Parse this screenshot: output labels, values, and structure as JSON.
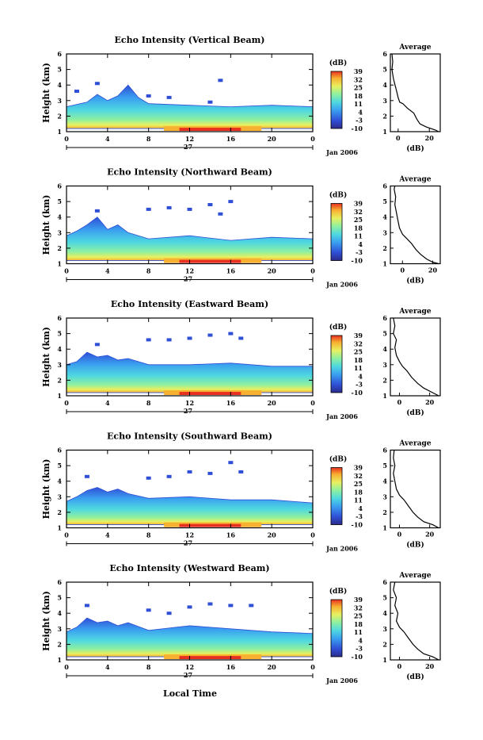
{
  "figure": {
    "date_label": "Jan 2006",
    "day_label": "27",
    "xlabel_bottom": "Local Time",
    "colorbar_unit": "(dB)",
    "colorbar_ticks": [
      "39",
      "32",
      "25",
      "18",
      "11",
      "4",
      "-3",
      "-10"
    ],
    "colorbar_colors": [
      "#2b2b8a",
      "#2f4fd6",
      "#3aa0f0",
      "#4fd8e0",
      "#8ef0a0",
      "#e8f060",
      "#f8b030",
      "#e83020"
    ],
    "average_title": "Average",
    "average_xlabel": "(dB)"
  },
  "chart_data": [
    {
      "type": "heatmap",
      "title": "Echo Intensity (Vertical Beam)",
      "ylabel": "Height (km)",
      "x_ticks": [
        "0",
        "4",
        "8",
        "12",
        "16",
        "20",
        "0"
      ],
      "y_ticks": [
        "1",
        "2",
        "3",
        "4",
        "5",
        "6"
      ],
      "xlim": [
        0,
        24
      ],
      "ylim": [
        1,
        6
      ],
      "zlim": [
        -10,
        39
      ],
      "cloud": {
        "top": [
          [
            0,
            2.6
          ],
          [
            2,
            2.9
          ],
          [
            3,
            3.4
          ],
          [
            4,
            3.0
          ],
          [
            5,
            3.3
          ],
          [
            6,
            4.0
          ],
          [
            7,
            3.2
          ],
          [
            8,
            2.8
          ],
          [
            12,
            2.7
          ],
          [
            16,
            2.6
          ],
          [
            20,
            2.7
          ],
          [
            24,
            2.6
          ]
        ],
        "sparse": [
          [
            1,
            3.6
          ],
          [
            3,
            4.1
          ],
          [
            8,
            3.3
          ],
          [
            10,
            3.2
          ],
          [
            15,
            4.3
          ],
          [
            14,
            2.9
          ]
        ]
      },
      "average": {
        "x_ticks": [
          "0",
          "20"
        ],
        "xlim": [
          -5,
          27
        ],
        "profile": [
          [
            26,
            1.0
          ],
          [
            24,
            1.1
          ],
          [
            18,
            1.3
          ],
          [
            14,
            1.5
          ],
          [
            12,
            1.8
          ],
          [
            10,
            2.2
          ],
          [
            6,
            2.5
          ],
          [
            3,
            2.8
          ],
          [
            1,
            2.9
          ],
          [
            0,
            3.2
          ],
          [
            -1,
            3.6
          ],
          [
            -2,
            4.0
          ],
          [
            -3,
            4.4
          ],
          [
            -4,
            5.0
          ],
          [
            -3.5,
            5.5
          ],
          [
            -4,
            6.0
          ]
        ]
      }
    },
    {
      "type": "heatmap",
      "title": "Echo Intensity (Northward Beam)",
      "ylabel": "Height (km)",
      "x_ticks": [
        "0",
        "4",
        "8",
        "12",
        "16",
        "20",
        "0"
      ],
      "y_ticks": [
        "1",
        "2",
        "3",
        "4",
        "5",
        "6"
      ],
      "xlim": [
        0,
        24
      ],
      "ylim": [
        1,
        6
      ],
      "zlim": [
        -10,
        39
      ],
      "cloud": {
        "top": [
          [
            0,
            2.8
          ],
          [
            1,
            3.1
          ],
          [
            2,
            3.5
          ],
          [
            3,
            4.0
          ],
          [
            4,
            3.2
          ],
          [
            5,
            3.5
          ],
          [
            6,
            3.0
          ],
          [
            8,
            2.6
          ],
          [
            12,
            2.8
          ],
          [
            16,
            2.5
          ],
          [
            20,
            2.7
          ],
          [
            24,
            2.6
          ]
        ],
        "sparse": [
          [
            3,
            4.4
          ],
          [
            8,
            4.5
          ],
          [
            10,
            4.6
          ],
          [
            12,
            4.5
          ],
          [
            14,
            4.8
          ],
          [
            16,
            5.0
          ],
          [
            15,
            4.2
          ]
        ]
      },
      "average": {
        "x_ticks": [
          "0",
          "20"
        ],
        "xlim": [
          -8,
          25
        ],
        "profile": [
          [
            24,
            1.0
          ],
          [
            20,
            1.1
          ],
          [
            16,
            1.3
          ],
          [
            12,
            1.6
          ],
          [
            9,
            1.9
          ],
          [
            6,
            2.3
          ],
          [
            3,
            2.6
          ],
          [
            0,
            2.9
          ],
          [
            -2,
            3.3
          ],
          [
            -3,
            3.8
          ],
          [
            -4,
            4.3
          ],
          [
            -5,
            4.8
          ],
          [
            -4.5,
            5.3
          ],
          [
            -5.5,
            5.8
          ],
          [
            -5,
            6.0
          ]
        ]
      }
    },
    {
      "type": "heatmap",
      "title": "Echo Intensity (Eastward Beam)",
      "ylabel": "Height (km)",
      "x_ticks": [
        "0",
        "4",
        "8",
        "12",
        "16",
        "20",
        "0"
      ],
      "y_ticks": [
        "1",
        "2",
        "3",
        "4",
        "5",
        "6"
      ],
      "xlim": [
        0,
        24
      ],
      "ylim": [
        1,
        6
      ],
      "zlim": [
        -10,
        39
      ],
      "cloud": {
        "top": [
          [
            0,
            3.0
          ],
          [
            1,
            3.2
          ],
          [
            2,
            3.8
          ],
          [
            3,
            3.5
          ],
          [
            4,
            3.6
          ],
          [
            5,
            3.3
          ],
          [
            6,
            3.4
          ],
          [
            8,
            3.0
          ],
          [
            12,
            3.0
          ],
          [
            16,
            3.1
          ],
          [
            20,
            2.9
          ],
          [
            24,
            2.9
          ]
        ],
        "sparse": [
          [
            3,
            4.3
          ],
          [
            8,
            4.6
          ],
          [
            10,
            4.6
          ],
          [
            12,
            4.7
          ],
          [
            14,
            4.9
          ],
          [
            16,
            5.0
          ],
          [
            17,
            4.7
          ]
        ]
      },
      "average": {
        "x_ticks": [
          "0",
          "20"
        ],
        "xlim": [
          -6,
          27
        ],
        "profile": [
          [
            26,
            1.0
          ],
          [
            22,
            1.2
          ],
          [
            16,
            1.5
          ],
          [
            12,
            1.8
          ],
          [
            8,
            2.2
          ],
          [
            5,
            2.6
          ],
          [
            2,
            2.9
          ],
          [
            0,
            3.2
          ],
          [
            -2,
            3.6
          ],
          [
            -3,
            4.1
          ],
          [
            -2,
            4.6
          ],
          [
            -4,
            5.0
          ],
          [
            -3,
            5.5
          ],
          [
            -4,
            6.0
          ]
        ]
      }
    },
    {
      "type": "heatmap",
      "title": "Echo Intensity (Southward Beam)",
      "ylabel": "Height (km)",
      "x_ticks": [
        "0",
        "4",
        "8",
        "12",
        "16",
        "20",
        "0"
      ],
      "y_ticks": [
        "1",
        "2",
        "3",
        "4",
        "5",
        "6"
      ],
      "xlim": [
        0,
        24
      ],
      "ylim": [
        1,
        6
      ],
      "zlim": [
        -10,
        39
      ],
      "cloud": {
        "top": [
          [
            0,
            2.7
          ],
          [
            1,
            3.0
          ],
          [
            2,
            3.4
          ],
          [
            3,
            3.6
          ],
          [
            4,
            3.3
          ],
          [
            5,
            3.5
          ],
          [
            6,
            3.2
          ],
          [
            8,
            2.9
          ],
          [
            12,
            3.0
          ],
          [
            16,
            2.8
          ],
          [
            20,
            2.8
          ],
          [
            24,
            2.6
          ]
        ],
        "sparse": [
          [
            2,
            4.3
          ],
          [
            8,
            4.2
          ],
          [
            10,
            4.3
          ],
          [
            12,
            4.6
          ],
          [
            14,
            4.5
          ],
          [
            16,
            5.2
          ],
          [
            17,
            4.6
          ]
        ]
      },
      "average": {
        "x_ticks": [
          "0",
          "20"
        ],
        "xlim": [
          -6,
          27
        ],
        "profile": [
          [
            26,
            1.0
          ],
          [
            22,
            1.2
          ],
          [
            16,
            1.4
          ],
          [
            12,
            1.7
          ],
          [
            9,
            2.0
          ],
          [
            6,
            2.4
          ],
          [
            3,
            2.8
          ],
          [
            0,
            3.1
          ],
          [
            -2,
            3.5
          ],
          [
            -3,
            4.0
          ],
          [
            -4,
            4.5
          ],
          [
            -3,
            5.0
          ],
          [
            -4,
            5.5
          ],
          [
            -3.5,
            6.0
          ]
        ]
      }
    },
    {
      "type": "heatmap",
      "title": "Echo Intensity (Westward Beam)",
      "ylabel": "Height (km)",
      "x_ticks": [
        "0",
        "4",
        "8",
        "12",
        "16",
        "20",
        "0"
      ],
      "y_ticks": [
        "1",
        "2",
        "3",
        "4",
        "5",
        "6"
      ],
      "xlim": [
        0,
        24
      ],
      "ylim": [
        1,
        6
      ],
      "zlim": [
        -10,
        39
      ],
      "cloud": {
        "top": [
          [
            0,
            2.8
          ],
          [
            1,
            3.1
          ],
          [
            2,
            3.7
          ],
          [
            3,
            3.4
          ],
          [
            4,
            3.5
          ],
          [
            5,
            3.2
          ],
          [
            6,
            3.4
          ],
          [
            8,
            2.9
          ],
          [
            12,
            3.2
          ],
          [
            16,
            3.0
          ],
          [
            20,
            2.8
          ],
          [
            24,
            2.7
          ]
        ],
        "sparse": [
          [
            2,
            4.5
          ],
          [
            8,
            4.2
          ],
          [
            10,
            4.0
          ],
          [
            12,
            4.4
          ],
          [
            14,
            4.6
          ],
          [
            16,
            4.5
          ],
          [
            18,
            4.5
          ]
        ]
      },
      "average": {
        "x_ticks": [
          "0",
          "20"
        ],
        "xlim": [
          -6,
          27
        ],
        "profile": [
          [
            26,
            1.0
          ],
          [
            22,
            1.2
          ],
          [
            16,
            1.4
          ],
          [
            12,
            1.7
          ],
          [
            9,
            2.0
          ],
          [
            6,
            2.4
          ],
          [
            3,
            2.8
          ],
          [
            0,
            3.1
          ],
          [
            -2,
            3.5
          ],
          [
            -1,
            4.0
          ],
          [
            -3,
            4.5
          ],
          [
            -2,
            5.0
          ],
          [
            -4,
            5.5
          ],
          [
            -3,
            6.0
          ]
        ]
      }
    }
  ]
}
